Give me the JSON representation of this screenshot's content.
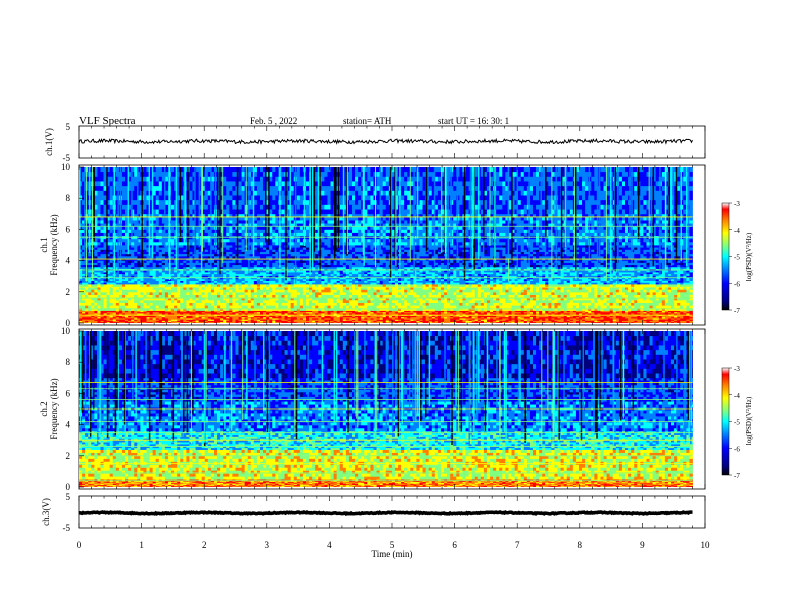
{
  "header": {
    "title": "VLF  Spectra",
    "date": "Feb. 5  , 2022",
    "station": "station= ATH",
    "start": "start  UT  =    16: 30: 1"
  },
  "chart_data": [
    {
      "type": "line",
      "name": "ch1-waveform",
      "ylabel": "ch.1(V)",
      "ylim": [
        -5,
        5
      ],
      "yticks": [
        "5",
        "-5"
      ],
      "xlim": [
        0,
        10
      ],
      "baseline": 0.2,
      "noise_amplitude": 0.55,
      "color": "#000000"
    },
    {
      "type": "heatmap",
      "name": "ch1-spectrogram",
      "ylabel_line1": "ch.1",
      "ylabel_line2": "Frequency  (kHz)",
      "ylim": [
        0,
        10
      ],
      "yticks": [
        "0",
        "2",
        "4",
        "6",
        "8",
        "10"
      ],
      "xlim": [
        0,
        9.8
      ],
      "colorbar": {
        "label": "log(PSD)(V²/Hz)",
        "range": [
          -7,
          -3
        ],
        "ticks": [
          "-3",
          "-4",
          "-5",
          "-6",
          "-7"
        ]
      },
      "bands": [
        {
          "from": 0,
          "to": 0.8,
          "level": -3.8
        },
        {
          "from": 0.8,
          "to": 2.5,
          "level": -4.7
        },
        {
          "from": 2.5,
          "to": 3.6,
          "level": -5.8
        },
        {
          "from": 3.6,
          "to": 5.0,
          "level": -6.3
        },
        {
          "from": 5.0,
          "to": 7.0,
          "level": -6.0
        },
        {
          "from": 7.0,
          "to": 10.0,
          "level": -6.2
        }
      ],
      "lines_khz": [
        6.8,
        6.2,
        5.5,
        4.1,
        3.4,
        2.9,
        2.3,
        1.6,
        0.9,
        0.5
      ]
    },
    {
      "type": "heatmap",
      "name": "ch2-spectrogram",
      "ylabel_line1": "ch.2",
      "ylabel_line2": "Frequency  (kHz)",
      "ylim": [
        0,
        10
      ],
      "yticks": [
        "0",
        "2",
        "4",
        "6",
        "8",
        "10"
      ],
      "xlim": [
        0,
        9.8
      ],
      "colorbar": {
        "label": "log(PSD)(V²/Hz)",
        "range": [
          -7,
          -3
        ],
        "ticks": [
          "-3",
          "-4",
          "-5",
          "-6",
          "-7"
        ]
      },
      "bands": [
        {
          "from": 0,
          "to": 0.5,
          "level": -4.0
        },
        {
          "from": 0.5,
          "to": 2.4,
          "level": -4.6
        },
        {
          "from": 2.4,
          "to": 3.6,
          "level": -5.5
        },
        {
          "from": 3.6,
          "to": 5.5,
          "level": -6.0
        },
        {
          "from": 5.5,
          "to": 7.0,
          "level": -6.3
        },
        {
          "from": 7.0,
          "to": 10.0,
          "level": -6.6
        }
      ],
      "lines_khz": [
        6.7,
        6.3,
        5.6,
        5.0,
        4.2,
        3.5,
        3.0,
        2.6,
        2.0,
        1.5,
        0.9,
        0.4
      ]
    },
    {
      "type": "line",
      "name": "ch3-waveform",
      "ylabel": "ch.3(V)",
      "ylim": [
        -5,
        5
      ],
      "yticks": [
        "5",
        "0",
        "-5"
      ],
      "xlim": [
        0,
        10
      ],
      "baseline": -0.3,
      "noise_amplitude": 0.15,
      "color": "#000000"
    }
  ],
  "x_axis": {
    "label": "Time  (min)",
    "ticks": [
      "0",
      "1",
      "2",
      "3",
      "4",
      "5",
      "6",
      "7",
      "8",
      "9",
      "10"
    ],
    "range": [
      0,
      10
    ]
  },
  "colors": {
    "colormap": [
      "#00007f",
      "#0000ff",
      "#0080ff",
      "#00ffff",
      "#80ff80",
      "#ffff00",
      "#ff8000",
      "#ff0000",
      "#ffffff"
    ]
  }
}
